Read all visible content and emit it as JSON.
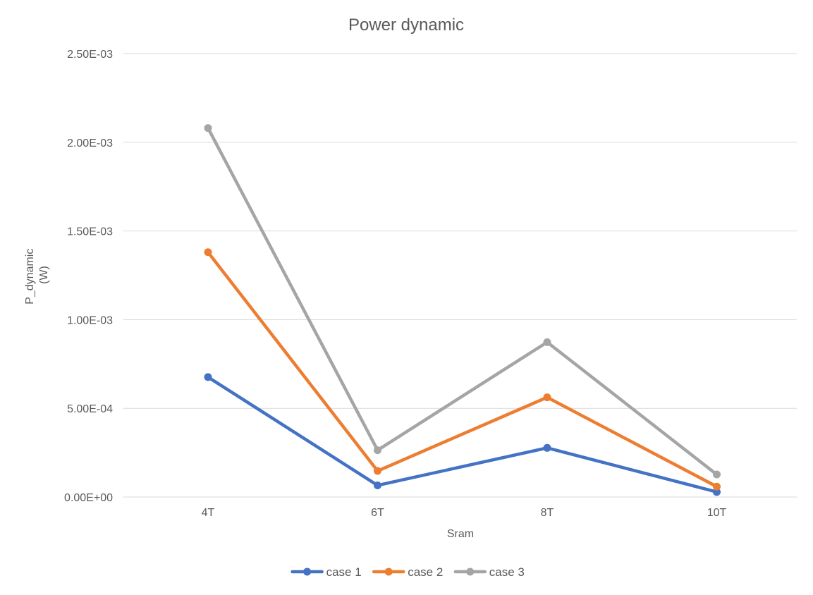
{
  "chart_data": {
    "type": "line",
    "title": "Power dynamic",
    "xlabel": "Sram",
    "ylabel_lines": [
      "P_dynamic",
      "(W)"
    ],
    "categories": [
      "4T",
      "6T",
      "8T",
      "10T"
    ],
    "ylim": [
      0,
      0.0025
    ],
    "yticks": [
      0,
      0.0005,
      0.001,
      0.0015,
      0.002,
      0.0025
    ],
    "ytick_labels": [
      "0.00E+00",
      "5.00E-04",
      "1.00E-03",
      "1.50E-03",
      "2.00E-03",
      "2.50E-03"
    ],
    "grid": true,
    "legend_position": "bottom",
    "series": [
      {
        "name": "case 1",
        "color": "#4472c4",
        "values": [
          0.000676,
          6.57e-05,
          0.000277,
          2.84e-05
        ]
      },
      {
        "name": "case 2",
        "color": "#ed7d31",
        "values": [
          0.00138,
          0.000147,
          0.000562,
          5.88e-05
        ]
      },
      {
        "name": "case 3",
        "color": "#a5a5a5",
        "values": [
          0.00208,
          0.000264,
          0.000873,
          0.000127
        ]
      }
    ]
  }
}
